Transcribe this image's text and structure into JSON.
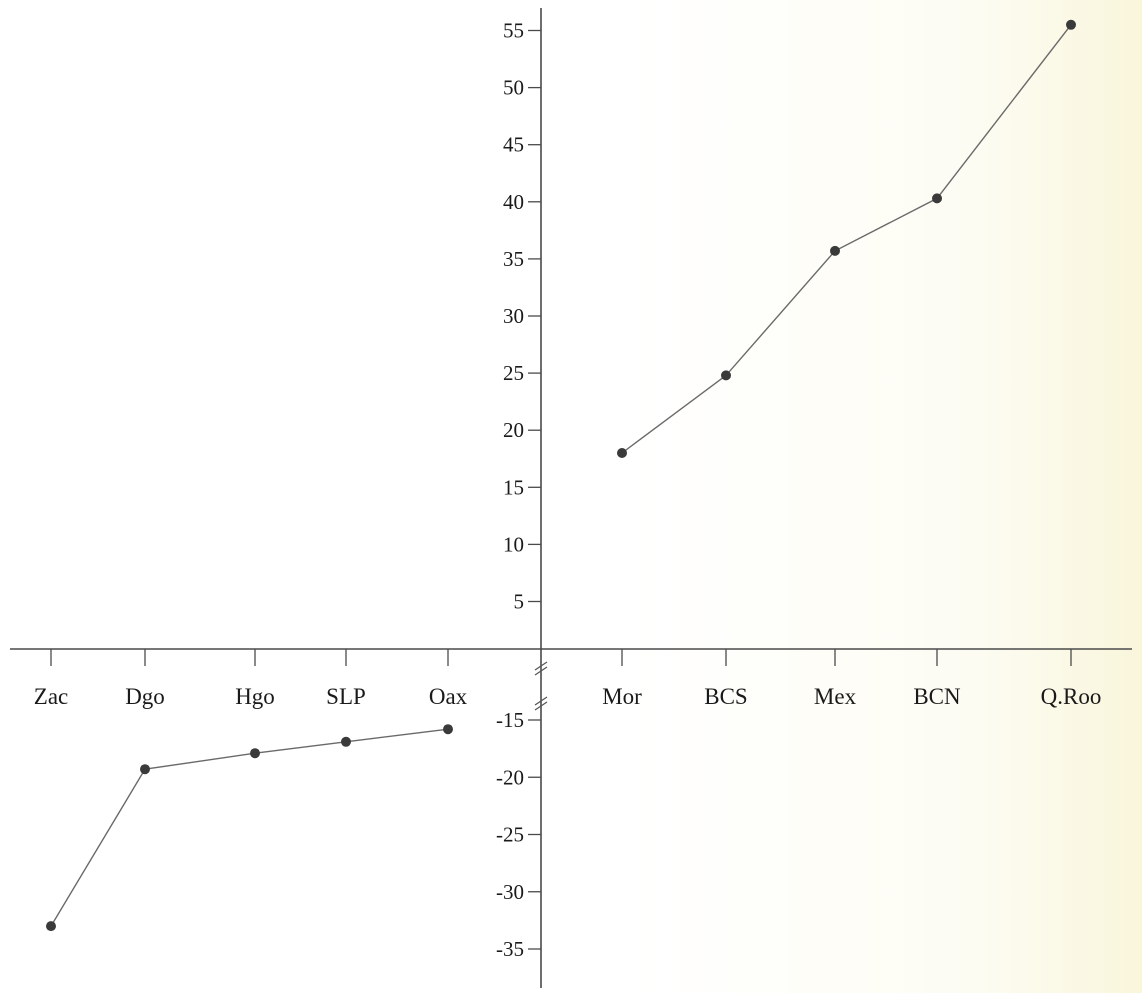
{
  "chart_data": {
    "type": "line",
    "title": "",
    "xlabel": "",
    "ylabel": "",
    "grid": false,
    "legend": "none",
    "axis_break": true,
    "ylim": [
      -37,
      58
    ],
    "y_ticks_upper": [
      "55",
      "50",
      "45",
      "40",
      "35",
      "30",
      "25",
      "20",
      "15",
      "10",
      "5"
    ],
    "y_ticks_lower": [
      "-15",
      "-20",
      "-25",
      "-30",
      "-35"
    ],
    "colors": {
      "line": "#6a6a6a",
      "marker": "#3a3a3a",
      "axis": "#4a4a4a"
    },
    "series": [
      {
        "points": [
          {
            "label": "Zac",
            "y": -33
          },
          {
            "label": "Dgo",
            "y": -19.3
          },
          {
            "label": "Hgo",
            "y": -17.9
          },
          {
            "label": "SLP",
            "y": -16.9
          },
          {
            "label": "Oax",
            "y": -15.8
          }
        ]
      },
      {
        "points": [
          {
            "label": "Mor",
            "y": 18
          },
          {
            "label": "BCS",
            "y": 24.8
          },
          {
            "label": "Mex",
            "y": 35.7
          },
          {
            "label": "BCN",
            "y": 40.3
          },
          {
            "label": "Q.Roo",
            "y": 55.5
          }
        ]
      }
    ]
  }
}
